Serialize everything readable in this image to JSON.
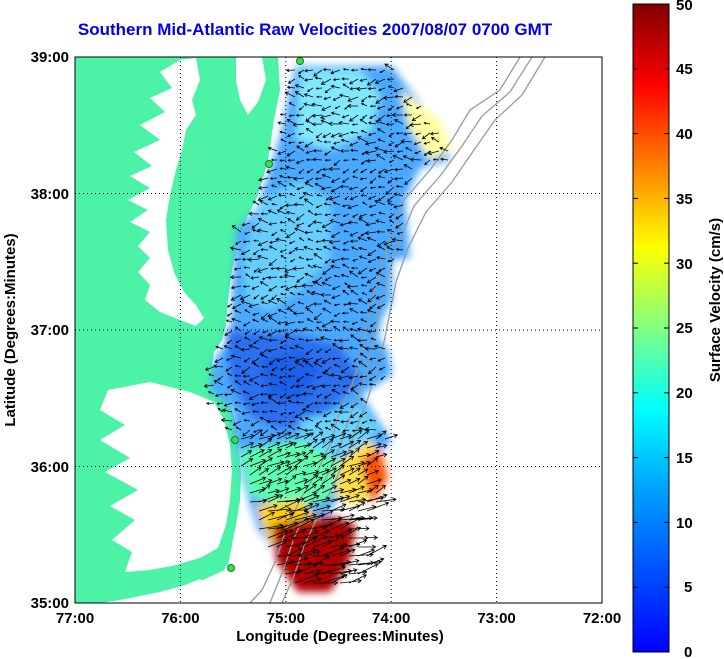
{
  "title": "Southern Mid-Atlantic Raw Velocities 2007/08/07 0700 GMT",
  "map": {
    "x_label": "Longitude (Degrees:Minutes)",
    "y_label": "Latitude (Degrees:Minutes)",
    "lon_range": [
      -77,
      -72
    ],
    "lat_range": [
      35,
      39
    ],
    "x_ticks": [
      "77:00",
      "76:00",
      "75:00",
      "74:00",
      "73:00",
      "72:00"
    ],
    "y_ticks": [
      "39:00",
      "38:00",
      "37:00",
      "36:00",
      "35:00"
    ],
    "colors": {
      "land": "#4cf2a6",
      "water": "#ffffff",
      "bathymetry": "#a0a0a0"
    }
  },
  "colorbar": {
    "label": "Surface Velocity (cm/s)",
    "range": [
      0,
      50
    ],
    "ticks": [
      "50",
      "45",
      "40",
      "35",
      "30",
      "25",
      "20",
      "15",
      "10",
      "5",
      "0"
    ]
  }
}
